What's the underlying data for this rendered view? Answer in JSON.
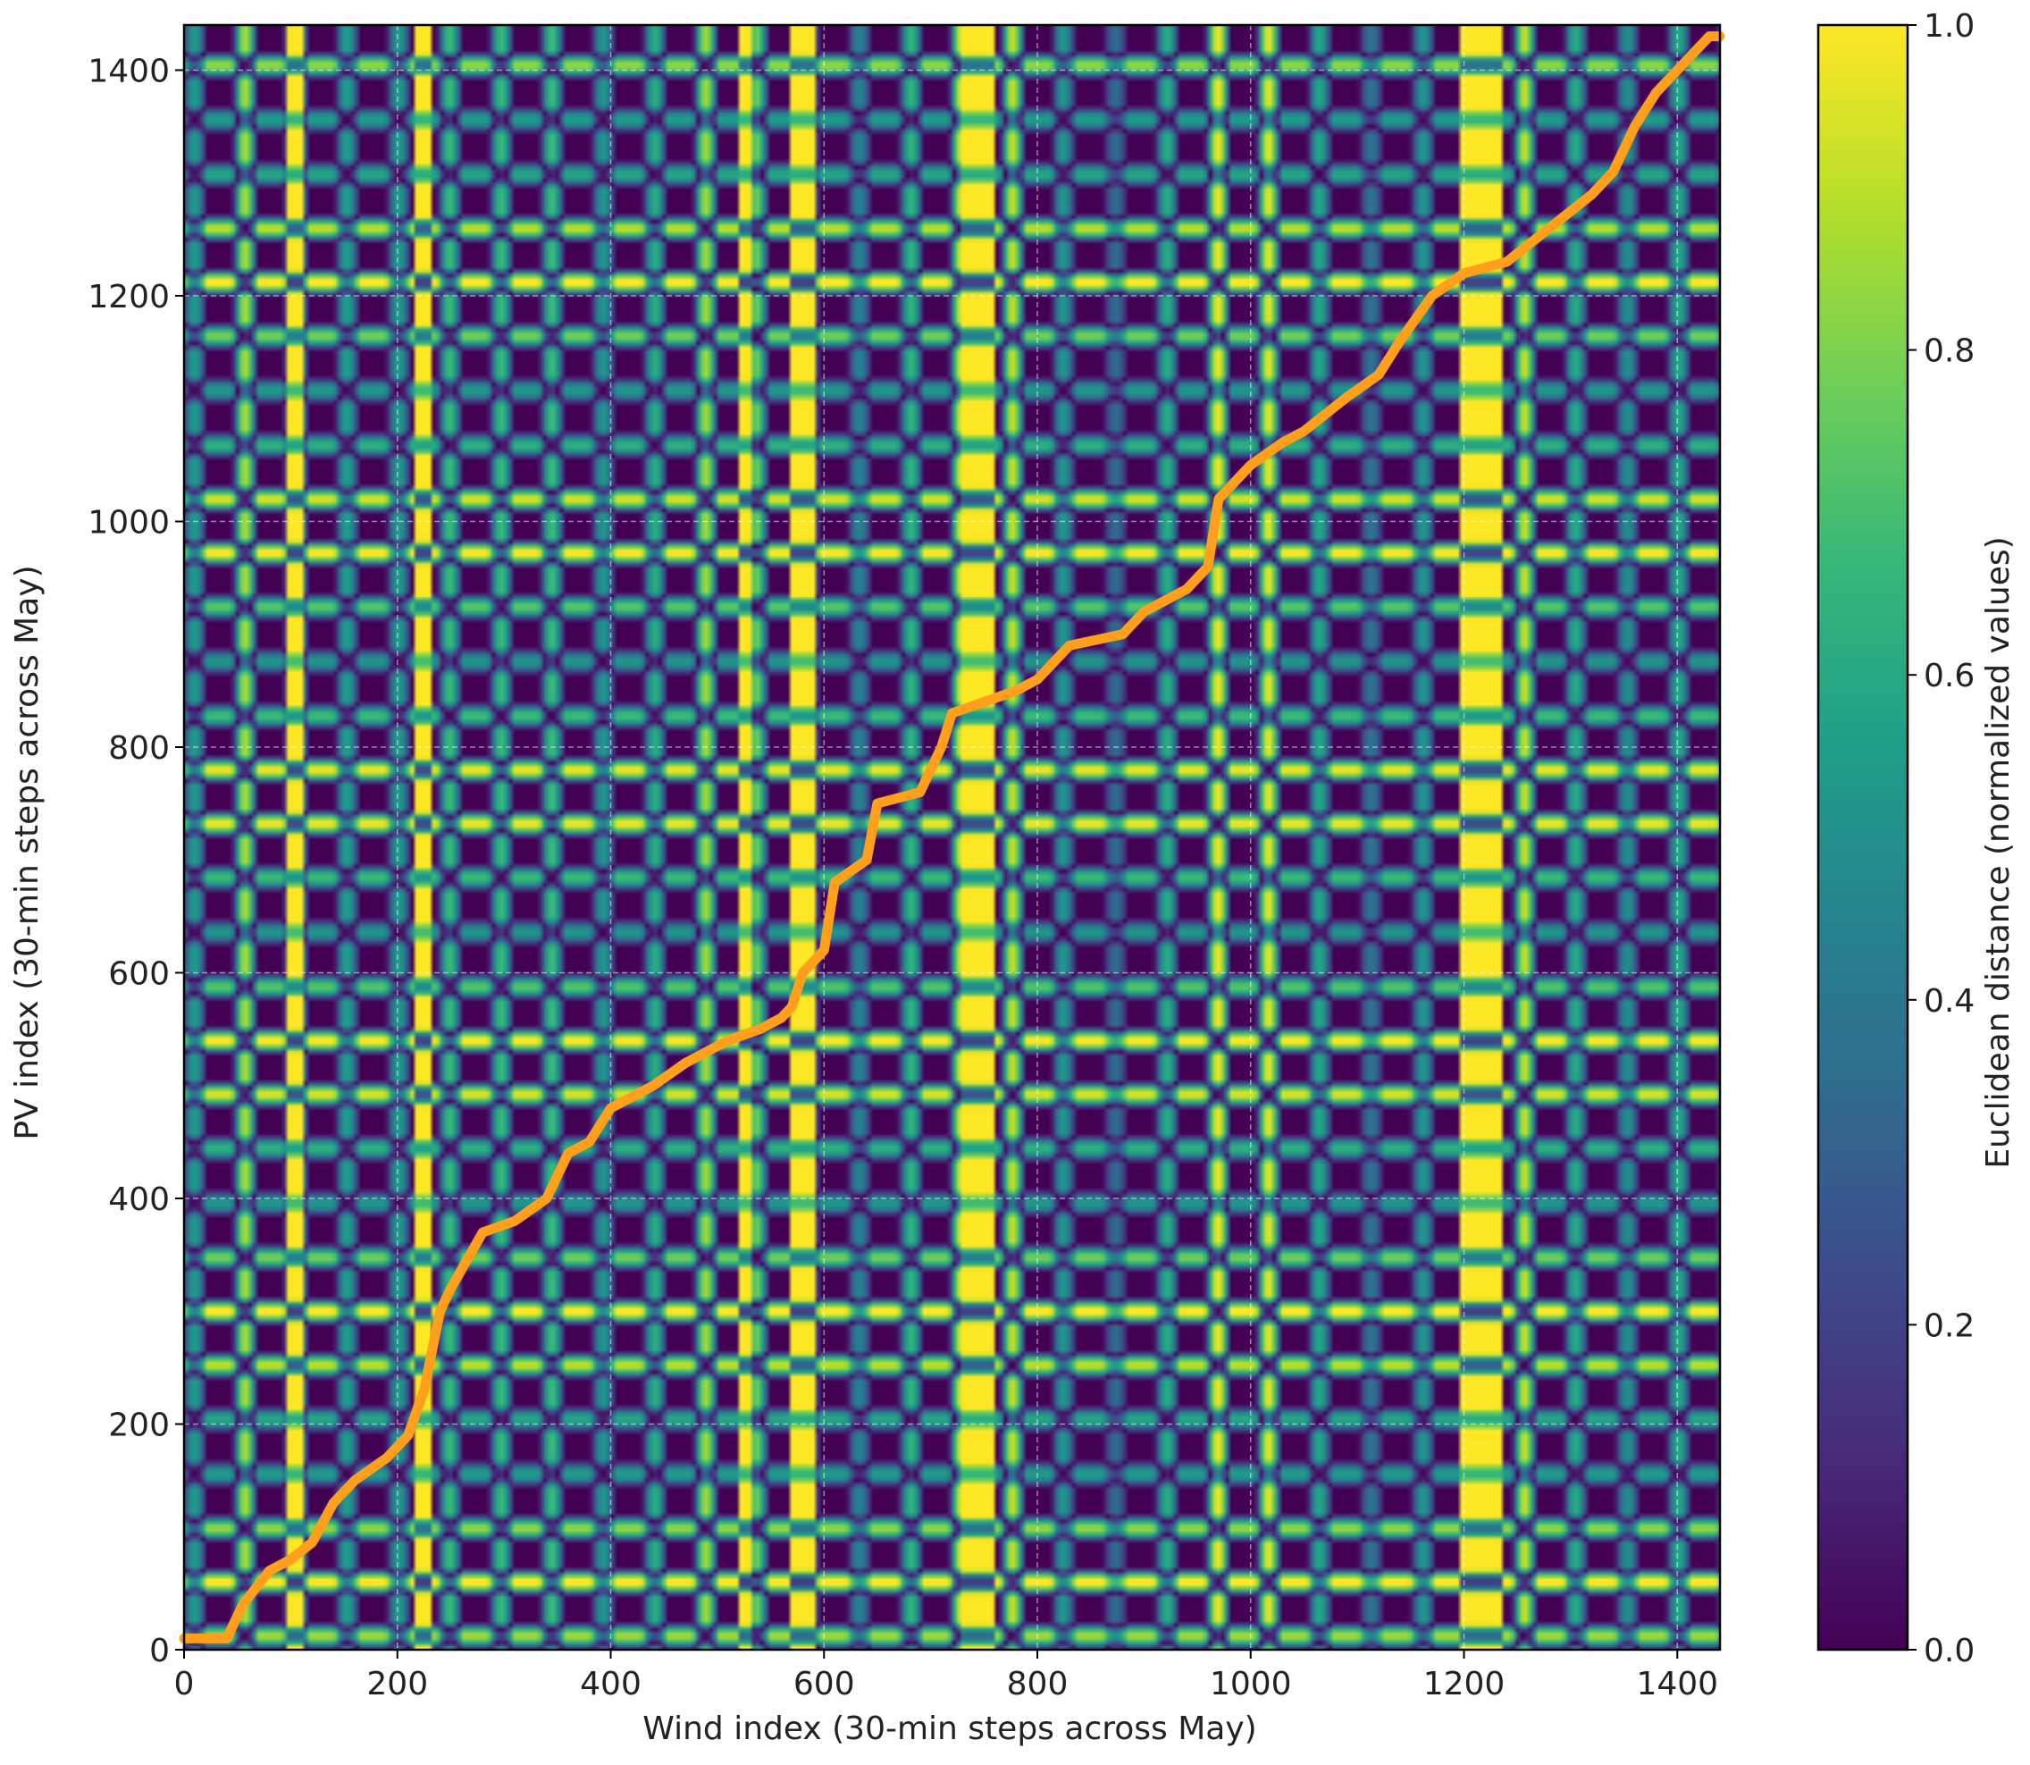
{
  "chart_data": {
    "type": "heatmap",
    "title": "",
    "xlabel": "Wind index (30-min steps across May)",
    "ylabel": "PV index (30-min steps across May)",
    "colorbar_label": "Euclidean distance (normalized values)",
    "colormap": "viridis",
    "colormap_stops": [
      "#440154",
      "#482878",
      "#3e4989",
      "#31688e",
      "#26828e",
      "#1f9e89",
      "#35b779",
      "#6ece58",
      "#b5de2b",
      "#fde725"
    ],
    "value_range": [
      0.0,
      1.0
    ],
    "xlim": [
      0,
      1440
    ],
    "ylim": [
      0,
      1440
    ],
    "x_ticks": [
      0,
      200,
      400,
      600,
      800,
      1000,
      1200,
      1400
    ],
    "y_ticks": [
      0,
      200,
      400,
      600,
      800,
      1000,
      1200,
      1400
    ],
    "x_tick_labels": [
      "0",
      "200",
      "400",
      "600",
      "800",
      "1000",
      "1200",
      "1400"
    ],
    "y_tick_labels": [
      "0",
      "200",
      "400",
      "600",
      "800",
      "1000",
      "1200",
      "1400"
    ],
    "colorbar_ticks": [
      0.0,
      0.2,
      0.4,
      0.6,
      0.8,
      1.0
    ],
    "colorbar_tick_labels": [
      "0.0",
      "0.2",
      "0.4",
      "0.6",
      "0.8",
      "1.0"
    ],
    "grid": true,
    "pattern_period": 48,
    "bright_wind_bands": [
      [
        95,
        110
      ],
      [
        215,
        230
      ],
      [
        520,
        530
      ],
      [
        570,
        590
      ],
      [
        730,
        760
      ],
      [
        1195,
        1235
      ]
    ],
    "warping_path": {
      "color": "#ff9f1c",
      "x": [
        0,
        40,
        55,
        80,
        100,
        120,
        140,
        160,
        190,
        210,
        225,
        240,
        250,
        280,
        310,
        340,
        360,
        380,
        400,
        440,
        470,
        510,
        540,
        560,
        570,
        580,
        600,
        610,
        640,
        650,
        690,
        710,
        720,
        780,
        800,
        820,
        830,
        880,
        900,
        940,
        960,
        970,
        1000,
        1030,
        1050,
        1090,
        1120,
        1140,
        1170,
        1200,
        1240,
        1280,
        1320,
        1340,
        1360,
        1380,
        1400,
        1430,
        1440
      ],
      "y": [
        10,
        10,
        40,
        70,
        80,
        95,
        130,
        150,
        170,
        190,
        230,
        300,
        320,
        370,
        380,
        400,
        440,
        450,
        480,
        500,
        520,
        540,
        550,
        560,
        570,
        600,
        620,
        680,
        700,
        750,
        760,
        800,
        830,
        850,
        860,
        880,
        890,
        900,
        920,
        940,
        960,
        1020,
        1050,
        1070,
        1080,
        1110,
        1130,
        1160,
        1200,
        1220,
        1230,
        1260,
        1290,
        1310,
        1350,
        1380,
        1400,
        1430,
        1430
      ]
    }
  }
}
